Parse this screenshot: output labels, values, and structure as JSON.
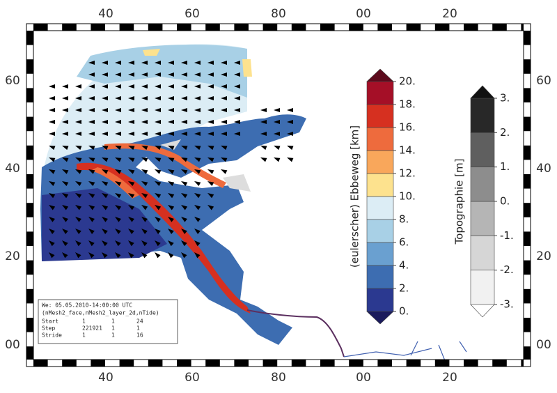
{
  "map": {
    "top_labels": [
      "40",
      "60",
      "80",
      "00",
      "20"
    ],
    "left_labels": [
      "60",
      "40",
      "20",
      "00"
    ],
    "info_box": {
      "title": "We: 05.05.2010-14:00:00 UTC",
      "subtitle": "(nMesh2_face,nMesh2_layer_2d,nTide)",
      "rows": [
        [
          "Start",
          "1",
          "1",
          "24"
        ],
        [
          "Step",
          "221921",
          "1",
          "1"
        ],
        [
          "Stride",
          "1",
          "1",
          "16"
        ]
      ]
    },
    "colorbars": [
      {
        "label": "(eulerscher) Ebbeweg [km]",
        "lim": [
          0,
          20
        ],
        "ticks": [
          {
            "value": 0,
            "label": "0."
          },
          {
            "value": 2,
            "label": "2."
          },
          {
            "value": 4,
            "label": "4."
          },
          {
            "value": 6,
            "label": "6."
          },
          {
            "value": 8,
            "label": "8."
          },
          {
            "value": 10,
            "label": "10."
          },
          {
            "value": 12,
            "label": "12."
          },
          {
            "value": 14,
            "label": "14."
          },
          {
            "value": 16,
            "label": "16."
          },
          {
            "value": 18,
            "label": "18."
          },
          {
            "value": 20,
            "label": "20."
          }
        ],
        "colors": [
          "#2b3990",
          "#3d6db1",
          "#6aa0d0",
          "#a8d0e6",
          "#dcedf5",
          "#fde28e",
          "#f9a75b",
          "#ee6b3d",
          "#d63020",
          "#a50f27"
        ],
        "over_color": "#5c0a1c",
        "under_color": "#1b1b5c"
      },
      {
        "label": "Topographie [m]",
        "lim": [
          -3,
          3
        ],
        "ticks": [
          {
            "value": -3,
            "label": "-3."
          },
          {
            "value": -2,
            "label": "-2."
          },
          {
            "value": -1,
            "label": "-1."
          },
          {
            "value": 0,
            "label": "0."
          },
          {
            "value": 1,
            "label": "1."
          },
          {
            "value": 2,
            "label": "2."
          },
          {
            "value": 3,
            "label": "3."
          }
        ],
        "colors": [
          "#f1f1f1",
          "#d6d6d6",
          "#b5b5b5",
          "#8d8d8d",
          "#5f5f5f",
          "#282828"
        ],
        "over_color": "#111111",
        "under_color": "#ffffff"
      }
    ]
  }
}
